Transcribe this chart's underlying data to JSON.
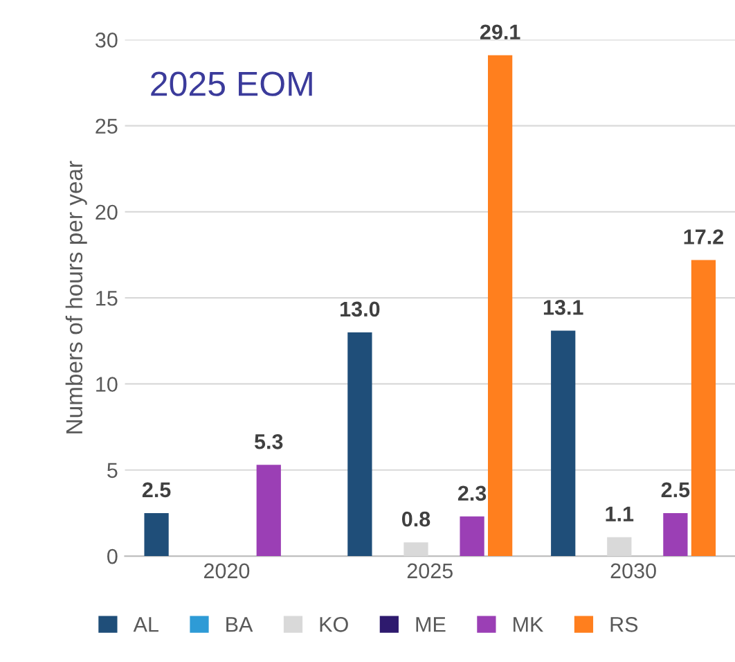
{
  "chart_data": {
    "type": "bar",
    "title": "2025 EOM",
    "ylabel": "Numbers of hours per year",
    "categories": [
      "2020",
      "2025",
      "2030"
    ],
    "series": [
      {
        "name": "AL",
        "color": "#1f4e79",
        "values": [
          2.5,
          13.0,
          13.1
        ],
        "value_labels": [
          "2.5",
          "13.0",
          "13.1"
        ]
      },
      {
        "name": "BA",
        "color": "#2e9bd6",
        "values": [
          null,
          null,
          null
        ]
      },
      {
        "name": "KO",
        "color": "#d9d9d9",
        "values": [
          null,
          0.8,
          1.1
        ],
        "value_labels": [
          null,
          "0.8",
          "1.1"
        ]
      },
      {
        "name": "ME",
        "color": "#2e1a6e",
        "values": [
          null,
          null,
          null
        ]
      },
      {
        "name": "MK",
        "color": "#9b3fb5",
        "values": [
          5.3,
          2.3,
          2.5
        ],
        "value_labels": [
          "5.3",
          "2.3",
          "2.5"
        ]
      },
      {
        "name": "RS",
        "color": "#ff7f1e",
        "values": [
          null,
          29.1,
          17.2
        ],
        "value_labels": [
          null,
          "29.1",
          "17.2"
        ]
      }
    ],
    "ylim": [
      0,
      30
    ],
    "yticks": [
      0,
      5,
      10,
      15,
      20,
      25,
      30
    ],
    "grid": "y",
    "legend": "bottom"
  }
}
